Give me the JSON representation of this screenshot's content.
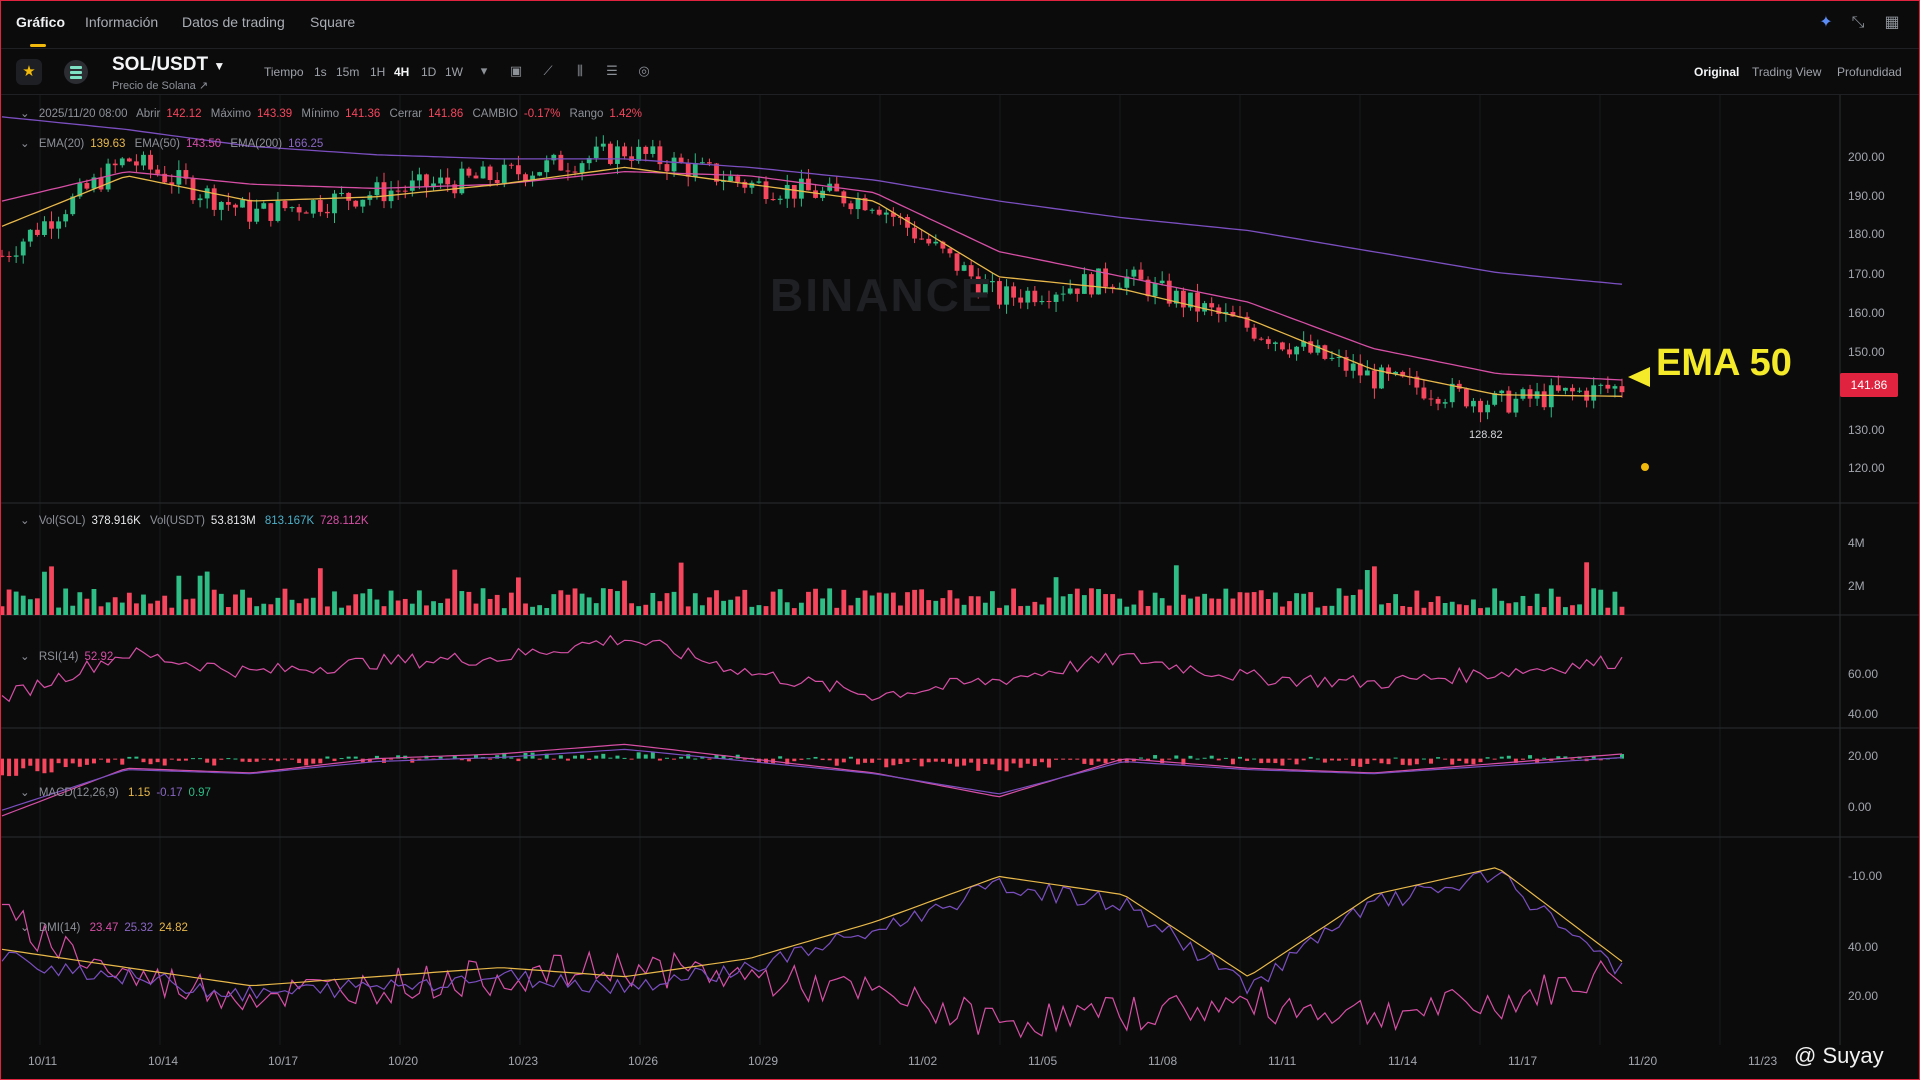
{
  "tabs": [
    {
      "label": "Gráfico"
    },
    {
      "label": "Información"
    },
    {
      "label": "Datos de trading"
    },
    {
      "label": "Square"
    }
  ],
  "toolbar": {
    "pair": "SOL/USDT",
    "pair_subtitle": "Precio de Solana ↗",
    "time_label": "Tiempo",
    "timeframes": [
      "1s",
      "15m",
      "1H",
      "4H",
      "1D",
      "1W"
    ],
    "active_timeframe": "4H",
    "views": [
      "Original",
      "Trading View",
      "Profundidad"
    ],
    "active_view": "Original"
  },
  "ohlc_legend": {
    "date": "2025/11/20 08:00",
    "open_label": "Abrir",
    "open": "142.12",
    "high_label": "Máximo",
    "high": "143.39",
    "low_label": "Mínimo",
    "low": "141.36",
    "close_label": "Cerrar",
    "close": "141.86",
    "change_label": "CAMBIO",
    "change": "-0.17%",
    "range_label": "Rango",
    "range": "1.42%"
  },
  "ema_legend": {
    "ema20_label": "EMA(20)",
    "ema20": "139.63",
    "ema50_label": "EMA(50)",
    "ema50": "143.50",
    "ema200_label": "EMA(200)",
    "ema200": "166.25"
  },
  "vol_legend": {
    "vol_sol_label": "Vol(SOL)",
    "vol_sol": "378.916K",
    "vol_usdt_label": "Vol(USDT)",
    "vol_usdt": "53.813M",
    "ma1": "813.167K",
    "ma2": "728.112K"
  },
  "rsi_legend": {
    "label": "RSI(14)",
    "value": "52.92"
  },
  "macd_legend": {
    "label": "MACD(12,26,9)",
    "v1": "1.15",
    "v2": "-0.17",
    "v3": "0.97"
  },
  "dmi_legend": {
    "label": "DMI(14)",
    "v1": "23.47",
    "v2": "25.32",
    "v3": "24.82"
  },
  "price_axis": [
    "200.00",
    "190.00",
    "180.00",
    "170.00",
    "160.00",
    "150.00",
    "130.00",
    "120.00"
  ],
  "current_price": "141.86",
  "low_marker": "128.82",
  "volume_axis": [
    "4M",
    "2M"
  ],
  "rsi_axis": [
    "60.00",
    "40.00",
    "20.00"
  ],
  "macd_axis": [
    "0.00",
    "-10.00"
  ],
  "dmi_axis": [
    "40.00",
    "20.00"
  ],
  "date_axis": [
    "10/11",
    "10/14",
    "10/17",
    "10/20",
    "10/23",
    "10/26",
    "10/29",
    "11/02",
    "11/05",
    "11/08",
    "11/11",
    "11/14",
    "11/17",
    "11/20",
    "11/23"
  ],
  "annotation": "EMA 50",
  "watermark": "BINANCE",
  "credit": "@ Suyay",
  "colors": {
    "up": "#2ebd85",
    "down": "#f6465d",
    "ema20": "#e8b84a",
    "ema50": "#d64fa5",
    "ema200": "#7b4fc0",
    "annotation": "#f4ea2a",
    "accent": "#f0b90b"
  },
  "chart_data": {
    "type": "candlestick",
    "symbol": "SOL/USDT",
    "interval": "4H",
    "x": [
      "10/11",
      "10/14",
      "10/17",
      "10/20",
      "10/23",
      "10/26",
      "10/29",
      "11/02",
      "11/05",
      "11/08",
      "11/11",
      "11/14",
      "11/17",
      "11/20"
    ],
    "close": [
      173,
      196,
      183,
      188,
      192,
      198,
      190,
      186,
      163,
      168,
      156,
      144,
      138,
      141.86
    ],
    "ema20": [
      180,
      192,
      186,
      187,
      190,
      194,
      190,
      186,
      168,
      165,
      158,
      146,
      140,
      139.63
    ],
    "ema50": [
      186,
      193,
      190,
      189,
      190,
      193,
      192,
      188,
      174,
      168,
      162,
      151,
      145,
      143.5
    ],
    "ema200": [
      206,
      203,
      199,
      197,
      196,
      196,
      194,
      191,
      186,
      182,
      179,
      174,
      169,
      166.25
    ],
    "ylim": [
      115,
      210
    ],
    "volume_ylim": [
      0,
      4000000
    ],
    "rsi": [
      28,
      58,
      45,
      52,
      55,
      68,
      45,
      30,
      40,
      55,
      42,
      38,
      45,
      52.92
    ],
    "macd": [
      -12,
      -2,
      -3,
      0,
      1,
      3,
      0,
      -3,
      -8,
      0,
      -2,
      -3,
      -1,
      0.97
    ],
    "dmi_plus": [
      35,
      22,
      18,
      20,
      22,
      24,
      22,
      18,
      12,
      14,
      16,
      14,
      16,
      23.47
    ],
    "dmi_minus": [
      28,
      24,
      20,
      22,
      24,
      22,
      26,
      34,
      44,
      40,
      22,
      40,
      46,
      25.32
    ]
  }
}
